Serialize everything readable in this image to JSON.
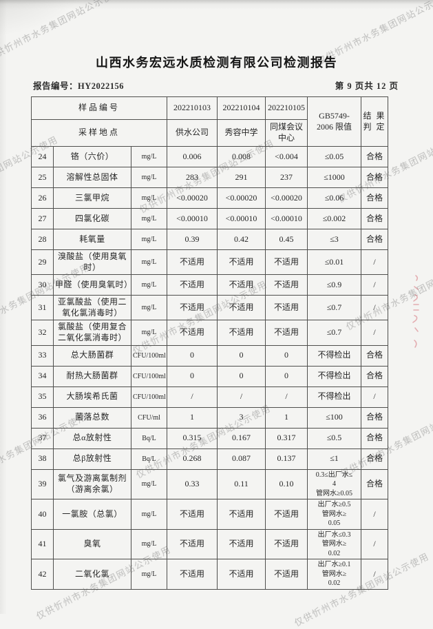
{
  "watermark": "仅供忻州市水务集团网站公示使用",
  "title": "山西水务宏远水质检测有限公司检测报告",
  "report_no": "报告编号：HY2022156",
  "page_info": "第 9 页共 12 页",
  "table": {
    "header": {
      "sample_id_label": "样品编号",
      "location_label": "采样地点",
      "sample_ids": [
        "202210103",
        "202210104",
        "202210105"
      ],
      "locations": [
        "供水公司",
        "秀容中学",
        "同煤会议中心"
      ],
      "standard_line1": "GB5749-",
      "standard_line2": "2006 限值",
      "result_line1": "结 果",
      "result_line2": "判 定"
    },
    "rows": [
      {
        "no": "24",
        "name": "铬（六价）",
        "unit": "mg/L",
        "v1": "0.006",
        "v2": "0.008",
        "v3": "<0.004",
        "limit": "≤0.05",
        "result": "合格"
      },
      {
        "no": "25",
        "name": "溶解性总固体",
        "unit": "mg/L",
        "v1": "283",
        "v2": "291",
        "v3": "237",
        "limit": "≤1000",
        "result": "合格"
      },
      {
        "no": "26",
        "name": "三氯甲烷",
        "unit": "mg/L",
        "v1": "<0.00020",
        "v2": "<0.00020",
        "v3": "<0.00020",
        "limit": "≤0.06",
        "result": "合格"
      },
      {
        "no": "27",
        "name": "四氯化碳",
        "unit": "mg/L",
        "v1": "<0.00010",
        "v2": "<0.00010",
        "v3": "<0.00010",
        "limit": "≤0.002",
        "result": "合格"
      },
      {
        "no": "28",
        "name": "耗氧量",
        "unit": "mg/L",
        "v1": "0.39",
        "v2": "0.42",
        "v3": "0.45",
        "limit": "≤3",
        "result": "合格"
      },
      {
        "no": "29",
        "name": "溴酸盐（使用臭氧时）",
        "unit": "mg/L",
        "v1": "不适用",
        "v2": "不适用",
        "v3": "不适用",
        "limit": "≤0.01",
        "result": "/"
      },
      {
        "no": "30",
        "name": "甲醛（使用臭氧时）",
        "unit": "mg/L",
        "v1": "不适用",
        "v2": "不适用",
        "v3": "不适用",
        "limit": "≤0.9",
        "result": "/"
      },
      {
        "no": "31",
        "name": "亚氯酸盐（使用二氧化氯消毒时）",
        "unit": "mg/L",
        "v1": "不适用",
        "v2": "不适用",
        "v3": "不适用",
        "limit": "≤0.7",
        "result": "/"
      },
      {
        "no": "32",
        "name": "氯酸盐（使用复合二氧化氯消毒时）",
        "unit": "mg/L",
        "v1": "不适用",
        "v2": "不适用",
        "v3": "不适用",
        "limit": "≤0.7",
        "result": "/"
      },
      {
        "no": "33",
        "name": "总大肠菌群",
        "unit": "CFU/100ml",
        "v1": "0",
        "v2": "0",
        "v3": "0",
        "limit": "不得检出",
        "result": "合格"
      },
      {
        "no": "34",
        "name": "耐热大肠菌群",
        "unit": "CFU/100ml",
        "v1": "0",
        "v2": "0",
        "v3": "0",
        "limit": "不得检出",
        "result": "合格"
      },
      {
        "no": "35",
        "name": "大肠埃希氏菌",
        "unit": "CFU/100ml",
        "v1": "/",
        "v2": "/",
        "v3": "/",
        "limit": "不得检出",
        "result": "/"
      },
      {
        "no": "36",
        "name": "菌落总数",
        "unit": "CFU/ml",
        "v1": "1",
        "v2": "3",
        "v3": "1",
        "limit": "≤100",
        "result": "合格"
      },
      {
        "no": "37",
        "name": "总α放射性",
        "unit": "Bq/L",
        "v1": "0.315",
        "v2": "0.167",
        "v3": "0.317",
        "limit": "≤0.5",
        "result": "合格"
      },
      {
        "no": "38",
        "name": "总β放射性",
        "unit": "Bq/L",
        "v1": "0.268",
        "v2": "0.087",
        "v3": "0.137",
        "limit": "≤1",
        "result": "合格"
      },
      {
        "no": "39",
        "name": "氯气及游离氯制剂（游离余氯）",
        "unit": "mg/L",
        "v1": "0.33",
        "v2": "0.11",
        "v3": "0.10",
        "limit": "0.3≤出厂水≤\n4\n管网水≥0.05",
        "result": "合格"
      },
      {
        "no": "40",
        "name": "一氯胺（总氯）",
        "unit": "mg/L",
        "v1": "不适用",
        "v2": "不适用",
        "v3": "不适用",
        "limit": "出厂水≥0.5\n管网水≥\n0.05",
        "result": "/"
      },
      {
        "no": "41",
        "name": "臭氧",
        "unit": "mg/L",
        "v1": "不适用",
        "v2": "不适用",
        "v3": "不适用",
        "limit": "出厂水≤0.3\n管网水≥\n0.02",
        "result": "/"
      },
      {
        "no": "42",
        "name": "二氧化氯",
        "unit": "mg/L",
        "v1": "不适用",
        "v2": "不适用",
        "v3": "不适用",
        "limit": "出厂水≥0.1\n管网水≥\n0.02",
        "result": "/"
      }
    ]
  }
}
